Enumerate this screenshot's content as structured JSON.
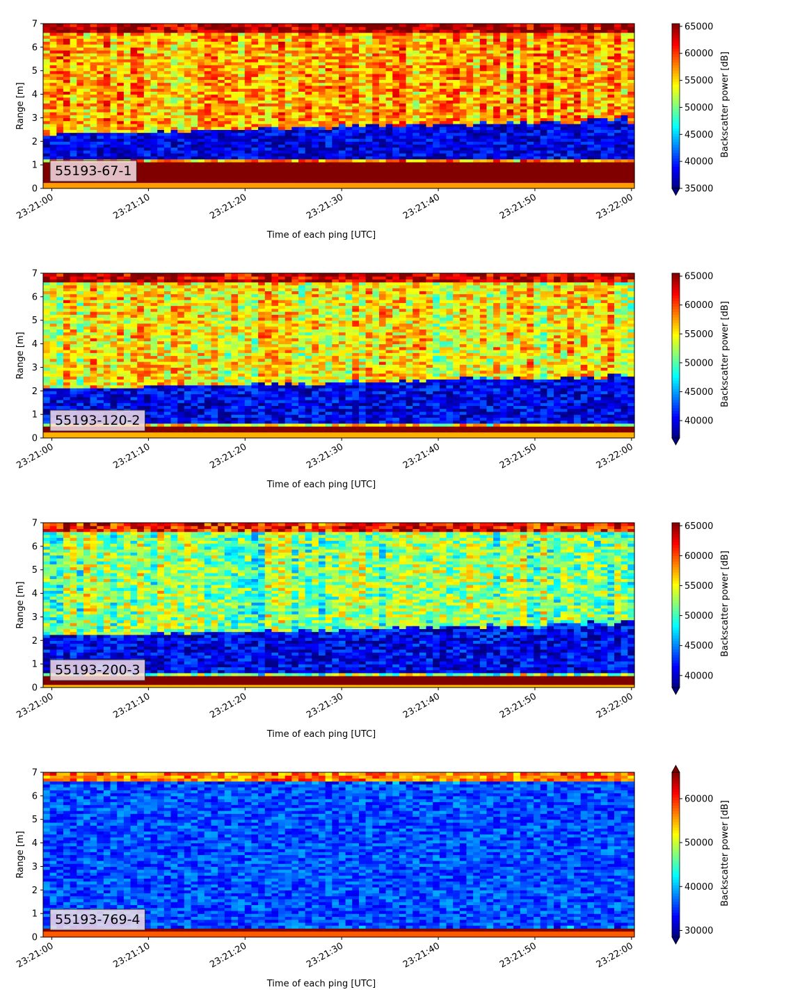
{
  "chart_data": [
    {
      "type": "heatmap",
      "id": "55193-67-1",
      "annotation": "55193-67-1",
      "xlabel": "Time of each ping [UTC]",
      "ylabel": "Range [m]",
      "colorbar_label": "Backscatter power [dB]",
      "x_ticks": [
        "23:21:00",
        "23:21:10",
        "23:21:20",
        "23:21:30",
        "23:21:40",
        "23:21:50",
        "23:22:00"
      ],
      "x_range_seconds": [
        -0.9,
        60.3
      ],
      "y_ticks": [
        0,
        1,
        2,
        3,
        4,
        5,
        6,
        7
      ],
      "ylim": [
        0,
        7
      ],
      "colorbar_ticks": [
        35000,
        40000,
        45000,
        50000,
        55000,
        60000,
        65000
      ],
      "clim": [
        35000,
        65500
      ],
      "colorbar_extend": "min",
      "colormap": "jet",
      "scene": {
        "near_band": [
          0.25,
          1.1
        ],
        "near_value": 65000,
        "dark_layer": [
          1.2,
          2.3
        ],
        "dark_value": 38000,
        "trough_end": 3.1,
        "upper_value": 57000,
        "top_value": 63000
      }
    },
    {
      "type": "heatmap",
      "id": "55193-120-2",
      "annotation": "55193-120-2",
      "xlabel": "Time of each ping [UTC]",
      "ylabel": "Range [m]",
      "colorbar_label": "Backscatter power [dB]",
      "x_ticks": [
        "23:21:00",
        "23:21:10",
        "23:21:20",
        "23:21:30",
        "23:21:40",
        "23:21:50",
        "23:22:00"
      ],
      "x_range_seconds": [
        -0.9,
        60.3
      ],
      "y_ticks": [
        0,
        1,
        2,
        3,
        4,
        5,
        6,
        7
      ],
      "ylim": [
        0,
        7
      ],
      "colorbar_ticks": [
        40000,
        45000,
        50000,
        55000,
        60000,
        65000
      ],
      "clim": [
        37000,
        65500
      ],
      "colorbar_extend": "min",
      "colormap": "jet",
      "scene": {
        "near_band": [
          0.2,
          0.55
        ],
        "near_value": 65000,
        "dark_layer": [
          0.6,
          2.1
        ],
        "dark_value": 40000,
        "trough_end": 2.8,
        "upper_value": 55000,
        "top_value": 62000
      }
    },
    {
      "type": "heatmap",
      "id": "55193-200-3",
      "annotation": "55193-200-3",
      "xlabel": "Time of each ping [UTC]",
      "ylabel": "Range [m]",
      "colorbar_label": "Backscatter power [dB]",
      "x_ticks": [
        "23:21:00",
        "23:21:10",
        "23:21:20",
        "23:21:30",
        "23:21:40",
        "23:21:50",
        "23:22:00"
      ],
      "x_range_seconds": [
        -0.9,
        60.3
      ],
      "y_ticks": [
        0,
        1,
        2,
        3,
        4,
        5,
        6,
        7
      ],
      "ylim": [
        0,
        7
      ],
      "colorbar_ticks": [
        40000,
        45000,
        50000,
        55000,
        60000,
        65000
      ],
      "clim": [
        38000,
        65500
      ],
      "colorbar_extend": "min",
      "colormap": "jet",
      "scene": {
        "near_band": [
          0.15,
          0.5
        ],
        "near_value": 65000,
        "dark_layer": [
          0.6,
          2.2
        ],
        "dark_value": 41000,
        "trough_end": 2.9,
        "upper_value": 52000,
        "top_value": 60000
      }
    },
    {
      "type": "heatmap",
      "id": "55193-769-4",
      "annotation": "55193-769-4",
      "xlabel": "Time of each ping [UTC]",
      "ylabel": "Range [m]",
      "colorbar_label": "Backscatter power [dB]",
      "x_ticks": [
        "23:21:00",
        "23:21:10",
        "23:21:20",
        "23:21:30",
        "23:21:40",
        "23:21:50",
        "23:22:00"
      ],
      "x_range_seconds": [
        -0.9,
        60.3
      ],
      "y_ticks": [
        0,
        1,
        2,
        3,
        4,
        5,
        6,
        7
      ],
      "ylim": [
        0,
        7
      ],
      "colorbar_ticks": [
        30000,
        40000,
        50000,
        60000
      ],
      "clim": [
        28500,
        66000
      ],
      "colorbar_extend": "both",
      "colormap": "jet",
      "scene": {
        "near_band": [
          0.2,
          0.4
        ],
        "near_value": 66000,
        "dark_layer": [
          0.5,
          6.5
        ],
        "dark_value": 36000,
        "trough_end": 6.6,
        "upper_value": 36000,
        "top_value": 55000
      }
    }
  ]
}
